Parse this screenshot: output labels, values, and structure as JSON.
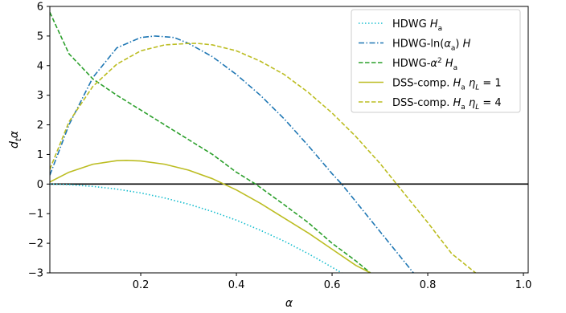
{
  "chart_data": {
    "type": "line",
    "xlabel": "α",
    "ylabel": "d_tα",
    "xlim": [
      0.01,
      1.01
    ],
    "ylim": [
      -3,
      6
    ],
    "xticks": [
      0.2,
      0.4,
      0.6,
      0.8,
      1.0
    ],
    "xtick_labels": [
      "0.2",
      "0.4",
      "0.6",
      "0.8",
      "1.0"
    ],
    "yticks": [
      -3,
      -2,
      -1,
      0,
      1,
      2,
      3,
      4,
      5,
      6
    ],
    "ytick_labels": [
      "−3",
      "−2",
      "−1",
      "0",
      "1",
      "2",
      "3",
      "4",
      "5",
      "6"
    ],
    "grid": false,
    "legend_position": "top-right",
    "zero_line": {
      "y": 0,
      "color": "#000000"
    },
    "series": [
      {
        "name": "HDWG H_a",
        "color": "#17becf",
        "style": "dotted",
        "x": [
          0.01,
          0.05,
          0.1,
          0.15,
          0.2,
          0.25,
          0.3,
          0.35,
          0.4,
          0.45,
          0.5,
          0.55,
          0.6,
          0.62
        ],
        "y": [
          0.0,
          -0.02,
          -0.08,
          -0.17,
          -0.3,
          -0.47,
          -0.68,
          -0.93,
          -1.22,
          -1.56,
          -1.93,
          -2.35,
          -2.81,
          -3.0
        ]
      },
      {
        "name": "HDWG-ln(α) H_a",
        "color": "#1f77b4",
        "style": "dashdot",
        "x": [
          0.01,
          0.05,
          0.1,
          0.15,
          0.2,
          0.23,
          0.27,
          0.3,
          0.35,
          0.4,
          0.45,
          0.5,
          0.55,
          0.6,
          0.62,
          0.65,
          0.7,
          0.75,
          0.77
        ],
        "y": [
          0.3,
          2.0,
          3.6,
          4.6,
          4.95,
          5.0,
          4.95,
          4.75,
          4.3,
          3.7,
          3.0,
          2.2,
          1.3,
          0.35,
          0.0,
          -0.6,
          -1.6,
          -2.6,
          -3.0
        ]
      },
      {
        "name": "HDWG-α² H_a",
        "color": "#2ca02c",
        "style": "dashed",
        "x": [
          0.01,
          0.03,
          0.05,
          0.1,
          0.15,
          0.2,
          0.25,
          0.3,
          0.35,
          0.4,
          0.44,
          0.5,
          0.55,
          0.6,
          0.65,
          0.68
        ],
        "y": [
          5.8,
          5.1,
          4.4,
          3.55,
          3.0,
          2.5,
          2.0,
          1.5,
          1.0,
          0.4,
          0.0,
          -0.7,
          -1.3,
          -2.0,
          -2.6,
          -3.0
        ]
      },
      {
        "name": "DSS-comp. H_a η_L = 1",
        "color": "#bcbd22",
        "style": "solid",
        "x": [
          0.01,
          0.05,
          0.1,
          0.15,
          0.17,
          0.2,
          0.25,
          0.3,
          0.35,
          0.4,
          0.45,
          0.5,
          0.55,
          0.6,
          0.65,
          0.68
        ],
        "y": [
          0.07,
          0.4,
          0.67,
          0.79,
          0.8,
          0.78,
          0.67,
          0.47,
          0.18,
          -0.2,
          -0.65,
          -1.15,
          -1.65,
          -2.2,
          -2.75,
          -3.0
        ]
      },
      {
        "name": "DSS-comp. H_a η_L = 4",
        "color": "#bcbd22",
        "style": "dashed",
        "x": [
          0.01,
          0.05,
          0.1,
          0.15,
          0.2,
          0.25,
          0.3,
          0.32,
          0.35,
          0.4,
          0.45,
          0.5,
          0.55,
          0.6,
          0.65,
          0.7,
          0.75,
          0.8,
          0.85,
          0.9
        ],
        "y": [
          0.5,
          2.1,
          3.3,
          4.05,
          4.5,
          4.7,
          4.75,
          4.75,
          4.7,
          4.5,
          4.15,
          3.7,
          3.1,
          2.4,
          1.6,
          0.7,
          -0.3,
          -1.3,
          -2.35,
          -3.0
        ]
      }
    ],
    "legend": [
      {
        "label": "HDWG ",
        "italic": "H",
        "sub": "a",
        "tail": ""
      },
      {
        "label": "HDWG-ln(",
        "italic": "α",
        "mid": ") ",
        "italic2": "H",
        "sub": "a",
        "tail": ""
      },
      {
        "label": "HDWG-",
        "italic": "α",
        "sup": "2",
        "mid": " ",
        "italic2": "H",
        "sub": "a",
        "tail": ""
      },
      {
        "label": "DSS-comp. ",
        "italic": "H",
        "sub": "a",
        "mid": " ",
        "italic2": "η",
        "sub2": "L",
        "tail": " = 1"
      },
      {
        "label": "DSS-comp. ",
        "italic": "H",
        "sub": "a",
        "mid": " ",
        "italic2": "η",
        "sub2": "L",
        "tail": " = 4"
      }
    ]
  }
}
